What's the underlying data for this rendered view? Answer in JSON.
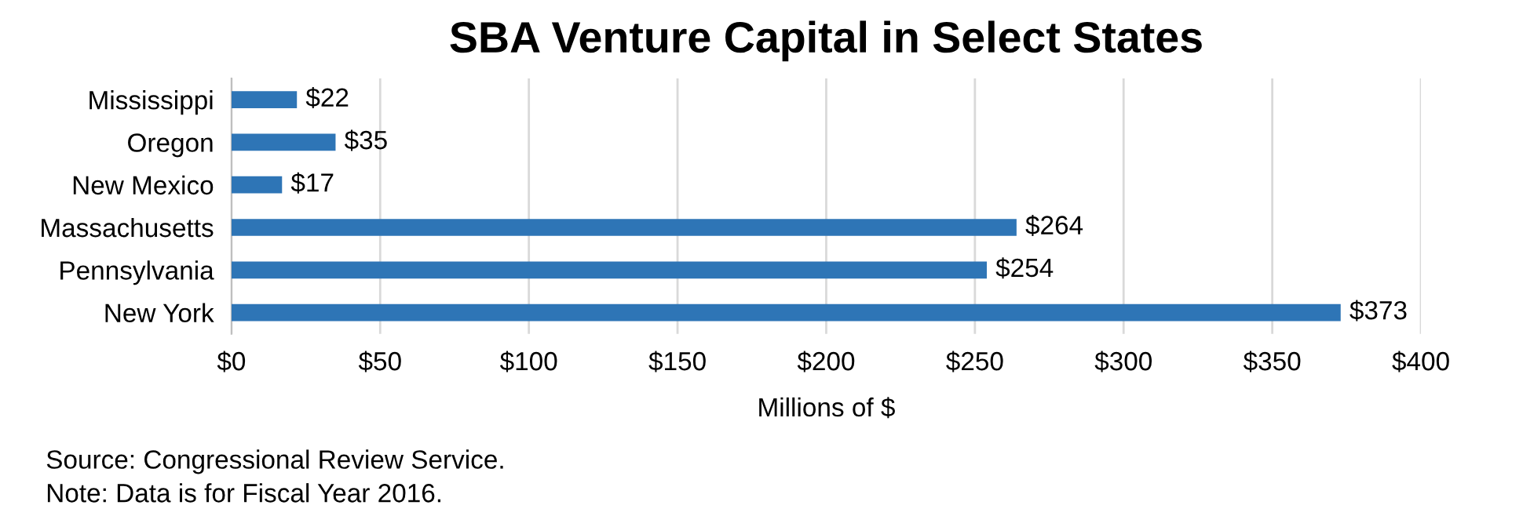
{
  "chart_data": {
    "type": "bar",
    "orientation": "horizontal",
    "title": "SBA Venture Capital in Select States",
    "categories": [
      "Mississippi",
      "Oregon",
      "New Mexico",
      "Massachusetts",
      "Pennsylvania",
      "New York"
    ],
    "values": [
      22,
      35,
      17,
      264,
      254,
      373
    ],
    "value_labels": [
      "$22",
      "$35",
      "$17",
      "$264",
      "$254",
      "$373"
    ],
    "color": "#2e75b6",
    "xlabel": "Millions of $",
    "xlim": [
      0,
      400
    ],
    "xticks": [
      {
        "value": 0,
        "label": "$0"
      },
      {
        "value": 50,
        "label": "$50"
      },
      {
        "value": 100,
        "label": "$100"
      },
      {
        "value": 150,
        "label": "$150"
      },
      {
        "value": 200,
        "label": "$200"
      },
      {
        "value": 250,
        "label": "$250"
      },
      {
        "value": 300,
        "label": "$300"
      },
      {
        "value": 350,
        "label": "$350"
      },
      {
        "value": 400,
        "label": "$400"
      }
    ],
    "grid": "x",
    "annotations": [
      "Source: Congressional Review Service.",
      "Note: Data is for Fiscal Year 2016."
    ]
  }
}
